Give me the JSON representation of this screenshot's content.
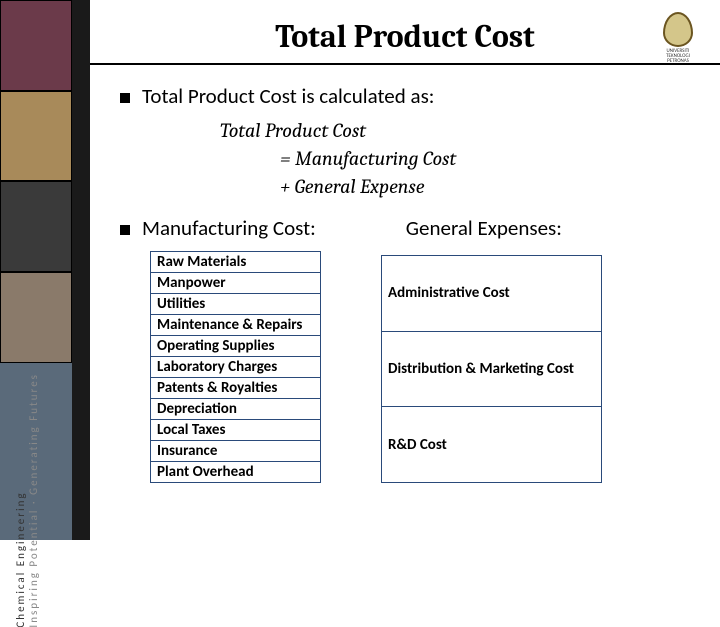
{
  "title": "Total Product Cost",
  "logo_text": "UNIVERSITI TEKNOLOGI PETRONAS",
  "vertical1": "Chemical Engineering",
  "vertical2": "Inspiring Potential · Generating Futures",
  "bullet1": "Total Product Cost is calculated as:",
  "formula_line1": "Total Product Cost",
  "formula_line2": "= Manufacturing Cost",
  "formula_line3": "+ General Expense",
  "subhead_left": "Manufacturing Cost:",
  "subhead_right": "General Expenses:",
  "manufacturing_items": [
    "Raw Materials",
    "Manpower",
    "Utilities",
    "Maintenance & Repairs",
    "Operating Supplies",
    "Laboratory Charges",
    "Patents & Royalties",
    "Depreciation",
    "Local Taxes",
    "Insurance",
    "Plant Overhead"
  ],
  "general_items": [
    "Administrative Cost",
    "Distribution & Marketing Cost",
    "R&D Cost"
  ],
  "strip_colors": [
    "#6b3a4a",
    "#a88a5a",
    "#3a3a3a",
    "#8a7a6a",
    "#5a6a7a"
  ],
  "colors": {
    "table_border": "#2a4a7a",
    "dark_band": "#1a1a1a",
    "logo_border": "#6b5520",
    "logo_fill": "#d4c68a"
  }
}
